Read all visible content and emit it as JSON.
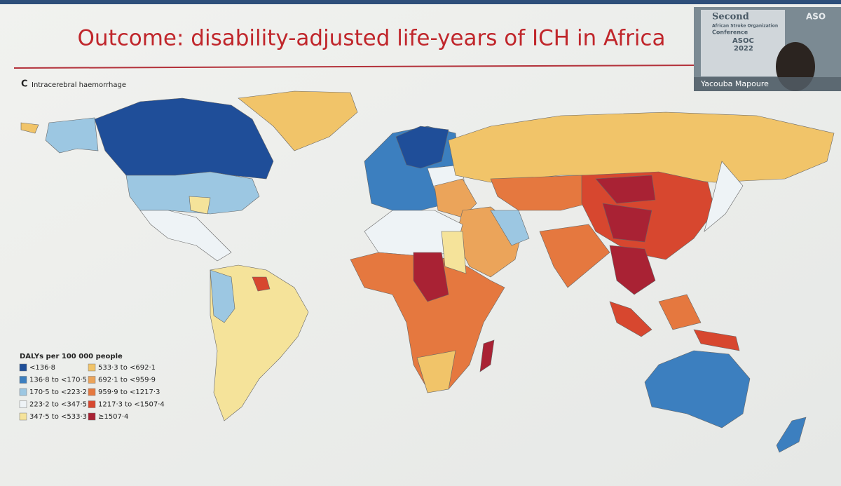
{
  "slide": {
    "title": "Outcome: disability-adjusted life-years of ICH in Africa",
    "panel_label": "C",
    "panel_title": "Intracerebral haemorrhage"
  },
  "legend": {
    "title": "DALYs per 100 000 people",
    "items": [
      {
        "label": "<136·8",
        "color": "#1f4e99"
      },
      {
        "label": "136·8 to <170·5",
        "color": "#3c7fbf"
      },
      {
        "label": "170·5 to <223·2",
        "color": "#9cc7e2"
      },
      {
        "label": "223·2 to <347·5",
        "color": "#eef3f6"
      },
      {
        "label": "347·5 to <533·3",
        "color": "#f5e39a"
      },
      {
        "label": "533·3 to <692·1",
        "color": "#f1c469"
      },
      {
        "label": "692·1 to <959·9",
        "color": "#eba45a"
      },
      {
        "label": "959·9 to <1217·3",
        "color": "#e5783f"
      },
      {
        "label": "1217·3 to <1507·4",
        "color": "#d7472f"
      },
      {
        "label": "≥1507·4",
        "color": "#a92234"
      }
    ]
  },
  "webcam": {
    "conference_line1": "Second",
    "conference_line2": "African Stroke Organization",
    "conference_line3": "Conference",
    "badge": "ASOC",
    "year": "2022",
    "logo": "ASO",
    "speaker": "Yacouba Mapoure"
  }
}
